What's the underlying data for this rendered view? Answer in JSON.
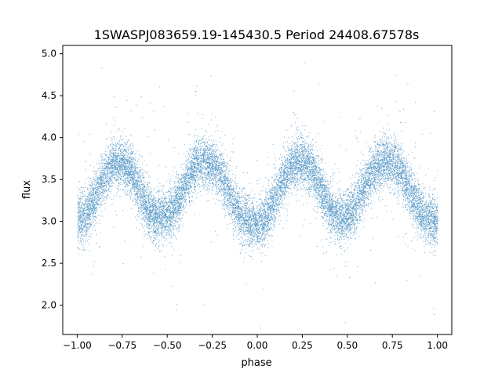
{
  "chart_data": {
    "type": "scatter",
    "title": "1SWASPJ083659.19-145430.5 Period 24408.67578s",
    "xlabel": "phase",
    "ylabel": "flux",
    "xlim": [
      -1.08,
      1.08
    ],
    "ylim": [
      1.65,
      5.1
    ],
    "xticks": [
      -1.0,
      -0.75,
      -0.5,
      -0.25,
      0.0,
      0.25,
      0.5,
      0.75,
      1.0
    ],
    "xtick_labels": [
      "−1.00",
      "−0.75",
      "−0.50",
      "−0.25",
      "0.00",
      "0.25",
      "0.50",
      "0.75",
      "1.00"
    ],
    "yticks": [
      2.0,
      2.5,
      3.0,
      3.5,
      4.0,
      4.5,
      5.0
    ],
    "ytick_labels": [
      "2.0",
      "2.5",
      "3.0",
      "3.5",
      "4.0",
      "4.5",
      "5.0"
    ],
    "grid": false,
    "marker_color": "#1f77b4",
    "phase_model": {
      "x": [
        -1.0,
        -0.95,
        -0.9,
        -0.85,
        -0.8,
        -0.75,
        -0.7,
        -0.65,
        -0.6,
        -0.55,
        -0.5,
        -0.45,
        -0.4,
        -0.35,
        -0.3,
        -0.25,
        -0.2,
        -0.15,
        -0.1,
        -0.05,
        0.0,
        0.05,
        0.1,
        0.15,
        0.2,
        0.25,
        0.3,
        0.35,
        0.4,
        0.45,
        0.5,
        0.55,
        0.6,
        0.65,
        0.7,
        0.75,
        0.8,
        0.85,
        0.9,
        0.95,
        1.0
      ],
      "flux": [
        3.0,
        3.1,
        3.3,
        3.55,
        3.68,
        3.7,
        3.6,
        3.35,
        3.12,
        3.05,
        3.07,
        3.2,
        3.45,
        3.65,
        3.72,
        3.7,
        3.55,
        3.3,
        3.1,
        3.0,
        2.95,
        3.05,
        3.3,
        3.55,
        3.7,
        3.72,
        3.62,
        3.4,
        3.15,
        3.05,
        3.05,
        3.2,
        3.45,
        3.65,
        3.72,
        3.7,
        3.58,
        3.35,
        3.12,
        3.02,
        3.0
      ]
    },
    "scatter_sigma": 0.15,
    "point_count": 16000
  }
}
